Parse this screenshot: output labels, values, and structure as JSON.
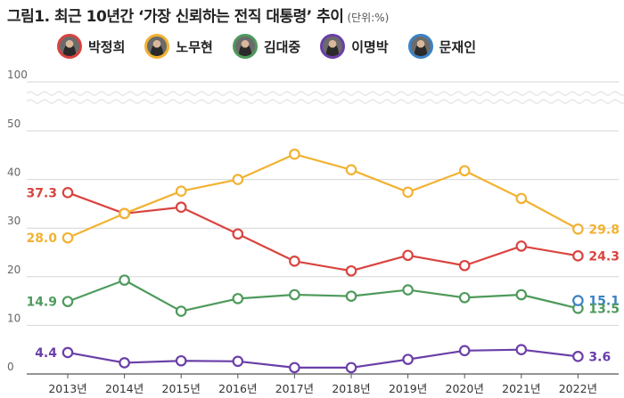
{
  "title": "그림1. 최근 10년간 ‘가장 신뢰하는 전직 대통령’ 추이",
  "unit": "(단위:%)",
  "colors": {
    "grid": "#d6d6d6",
    "axis": "#555555"
  },
  "legend": [
    {
      "label": "박정희",
      "color": "#d9443f",
      "icon": "park-chung-hee-portrait"
    },
    {
      "label": "노무현",
      "color": "#f2b232",
      "icon": "roh-moo-hyun-portrait"
    },
    {
      "label": "김대중",
      "color": "#4e9a5c",
      "icon": "kim-dae-jung-portrait"
    },
    {
      "label": "이명박",
      "color": "#6a3fa8",
      "icon": "lee-myung-bak-portrait"
    },
    {
      "label": "문재인",
      "color": "#3b82c4",
      "icon": "moon-jae-in-portrait"
    }
  ],
  "chart_data": {
    "type": "line",
    "title": "그림1. 최근 10년간 ‘가장 신뢰하는 전직 대통령’ 추이",
    "unit": "(단위:%)",
    "categories": [
      "2013년",
      "2014년",
      "2015년",
      "2016년",
      "2017년",
      "2018년",
      "2019년",
      "2020년",
      "2021년",
      "2022년"
    ],
    "y_ticks": [
      "0",
      "10",
      "20",
      "30",
      "40",
      "50",
      "100"
    ],
    "axis_break": "between 50 and 100",
    "grid": true,
    "legend_position": "top",
    "series": [
      {
        "name": "박정희",
        "color": "#d9443f",
        "values": [
          37.3,
          33,
          34.3,
          28.8,
          23.2,
          21.2,
          24.4,
          22.3,
          26.3,
          24.3
        ]
      },
      {
        "name": "노무현",
        "color": "#f2b232",
        "values": [
          28.0,
          33,
          37.6,
          40.0,
          45.2,
          42.0,
          37.4,
          41.8,
          36.1,
          29.8
        ]
      },
      {
        "name": "김대중",
        "color": "#4e9a5c",
        "values": [
          14.9,
          19.3,
          12.9,
          15.5,
          16.3,
          16.0,
          17.3,
          15.7,
          16.3,
          13.5
        ]
      },
      {
        "name": "이명박",
        "color": "#6a3fa8",
        "values": [
          4.4,
          2.3,
          2.7,
          2.6,
          1.3,
          1.3,
          3.0,
          4.8,
          5.0,
          3.6
        ]
      },
      {
        "name": "문재인",
        "color": "#3b82c4",
        "values": [
          null,
          null,
          null,
          null,
          null,
          null,
          null,
          null,
          null,
          15.1
        ]
      }
    ],
    "annotations": [
      {
        "series": "박정희",
        "index": 0,
        "text": "37.3"
      },
      {
        "series": "노무현",
        "index": 0,
        "text": "28.0"
      },
      {
        "series": "김대중",
        "index": 0,
        "text": "14.9"
      },
      {
        "series": "이명박",
        "index": 0,
        "text": "4.4"
      },
      {
        "series": "노무현",
        "index": 9,
        "text": "29.8"
      },
      {
        "series": "박정희",
        "index": 9,
        "text": "24.3"
      },
      {
        "series": "문재인",
        "index": 9,
        "text": "15.1"
      },
      {
        "series": "김대중",
        "index": 9,
        "text": "13.5"
      },
      {
        "series": "이명박",
        "index": 9,
        "text": "3.6"
      }
    ]
  }
}
